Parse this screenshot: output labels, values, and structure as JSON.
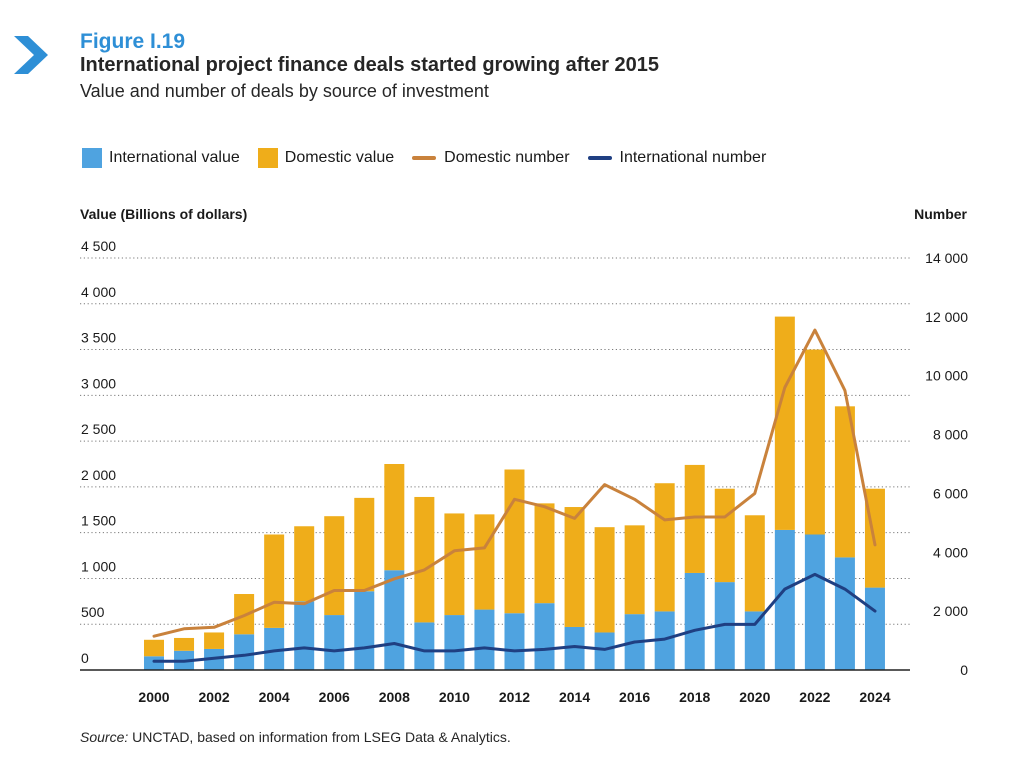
{
  "figure": {
    "label": "Figure I.19",
    "title": "International project finance deals started growing after 2015",
    "subtitle": "Value and number of deals by source of investment"
  },
  "source": {
    "prefix": "Source:",
    "text": " UNCTAD, based on information from LSEG Data & Analytics."
  },
  "colors": {
    "international_value": "#4fa3e0",
    "domestic_value": "#efad1a",
    "domestic_number": "#c9823c",
    "international_number": "#1f3f82",
    "accent": "#2e8fd6"
  },
  "icons": {
    "figure_marker": "chevron-right-icon"
  },
  "legend": [
    {
      "label": "International value",
      "kind": "box",
      "color_key": "international_value"
    },
    {
      "label": "Domestic value",
      "kind": "box",
      "color_key": "domestic_value"
    },
    {
      "label": "Domestic number",
      "kind": "line",
      "color_key": "domestic_number"
    },
    {
      "label": "International number",
      "kind": "line",
      "color_key": "international_number"
    }
  ],
  "chart_data": {
    "type": "bar",
    "stacked": true,
    "left_axis_title": "Value (Billions of dollars)",
    "right_axis_title": "Number",
    "ylim_left": [
      0,
      4500
    ],
    "ylim_right": [
      0,
      14000
    ],
    "left_ticks": [
      {
        "value": 0,
        "label": "0"
      },
      {
        "value": 500,
        "label": "500"
      },
      {
        "value": 1000,
        "label": "1 000"
      },
      {
        "value": 1500,
        "label": "1 500"
      },
      {
        "value": 2000,
        "label": "2 000"
      },
      {
        "value": 2500,
        "label": "2 500"
      },
      {
        "value": 3000,
        "label": "3 000"
      },
      {
        "value": 3500,
        "label": "3 500"
      },
      {
        "value": 4000,
        "label": "4 000"
      },
      {
        "value": 4500,
        "label": "4 500"
      }
    ],
    "right_ticks": [
      {
        "value": 0,
        "label": "0"
      },
      {
        "value": 2000,
        "label": "2 000"
      },
      {
        "value": 4000,
        "label": "4 000"
      },
      {
        "value": 6000,
        "label": "6 000"
      },
      {
        "value": 8000,
        "label": "8 000"
      },
      {
        "value": 10000,
        "label": "10 000"
      },
      {
        "value": 12000,
        "label": "12 000"
      },
      {
        "value": 14000,
        "label": "14 000"
      }
    ],
    "grid": "horizontal-dotted",
    "legend_position": "top-left",
    "years": [
      2000,
      2001,
      2002,
      2003,
      2004,
      2005,
      2006,
      2007,
      2008,
      2009,
      2010,
      2011,
      2012,
      2013,
      2014,
      2015,
      2016,
      2017,
      2018,
      2019,
      2020,
      2021,
      2022,
      2023,
      2024
    ],
    "x_tick_labels": [
      "2000",
      "2002",
      "2004",
      "2006",
      "2008",
      "2010",
      "2012",
      "2014",
      "2016",
      "2018",
      "2020",
      "2022",
      "2024"
    ],
    "series": [
      {
        "name": "International value",
        "axis": "left",
        "kind": "bar",
        "values": [
          150,
          210,
          230,
          390,
          460,
          750,
          600,
          860,
          1090,
          520,
          600,
          660,
          620,
          730,
          470,
          410,
          610,
          640,
          1060,
          960,
          640,
          1530,
          1480,
          1230,
          900
        ]
      },
      {
        "name": "Domestic value",
        "axis": "left",
        "kind": "bar",
        "values": [
          180,
          140,
          180,
          440,
          1020,
          820,
          1080,
          1020,
          1160,
          1370,
          1110,
          1040,
          1570,
          1090,
          1310,
          1150,
          970,
          1400,
          1180,
          1020,
          1050,
          2330,
          2020,
          1650,
          1080
        ]
      },
      {
        "name": "Domestic number",
        "axis": "right",
        "kind": "line",
        "values": [
          1150,
          1400,
          1450,
          1850,
          2300,
          2250,
          2700,
          2700,
          3100,
          3400,
          4050,
          4150,
          5800,
          5550,
          5150,
          6300,
          5800,
          5100,
          5200,
          5200,
          6000,
          9600,
          11550,
          9500,
          4250
        ]
      },
      {
        "name": "International number",
        "axis": "right",
        "kind": "line",
        "values": [
          300,
          300,
          400,
          500,
          650,
          750,
          650,
          750,
          900,
          650,
          650,
          750,
          650,
          700,
          800,
          700,
          950,
          1050,
          1350,
          1550,
          1550,
          2750,
          3250,
          2750,
          2000
        ]
      }
    ]
  }
}
